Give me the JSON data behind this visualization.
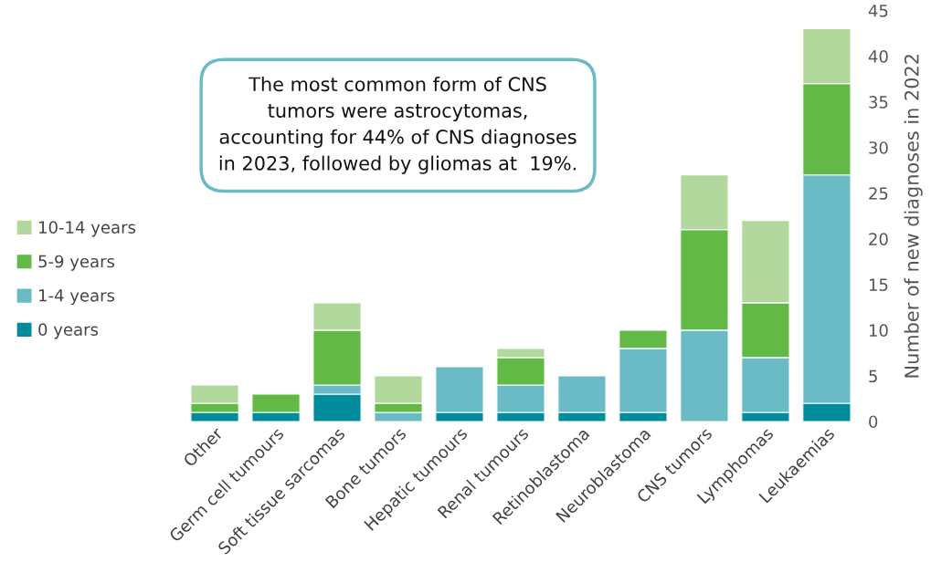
{
  "chart_data": {
    "type": "bar",
    "stacked": true,
    "categories": [
      "Other",
      "Germ cell tumours",
      "Soft tissue sarcomas",
      "Bone tumors",
      "Hepatic tumours",
      "Renal tumours",
      "Retinoblastoma",
      "Neuroblastoma",
      "CNS tumors",
      "Lymphomas",
      "Leukaemias"
    ],
    "series": [
      {
        "name": "0 years",
        "color": "#008c9b",
        "values": [
          1,
          1,
          3,
          0,
          1,
          1,
          1,
          1,
          0,
          1,
          2
        ]
      },
      {
        "name": "1-4 years",
        "color": "#6bbbc7",
        "values": [
          0,
          0,
          1,
          1,
          5,
          3,
          4,
          7,
          10,
          6,
          25
        ]
      },
      {
        "name": "5-9 years",
        "color": "#62b946",
        "values": [
          1,
          2,
          6,
          1,
          0,
          3,
          0,
          2,
          11,
          6,
          10
        ]
      },
      {
        "name": "10-14 years",
        "color": "#b3d89e",
        "values": [
          2,
          0,
          3,
          3,
          0,
          1,
          0,
          0,
          6,
          9,
          6
        ]
      }
    ],
    "ylabel": "Number of new diagnoses in 2022",
    "ylim": [
      0,
      45
    ],
    "yticks": [
      0,
      5,
      10,
      15,
      20,
      25,
      30,
      35,
      40,
      45
    ],
    "grid": false,
    "legend": "left",
    "annotations": [
      "The most common form of CNS\ntumors were astrocytomas,\naccounting for 44% of CNS diagnoses\nin 2023, followed by gliomas at  19%."
    ]
  }
}
